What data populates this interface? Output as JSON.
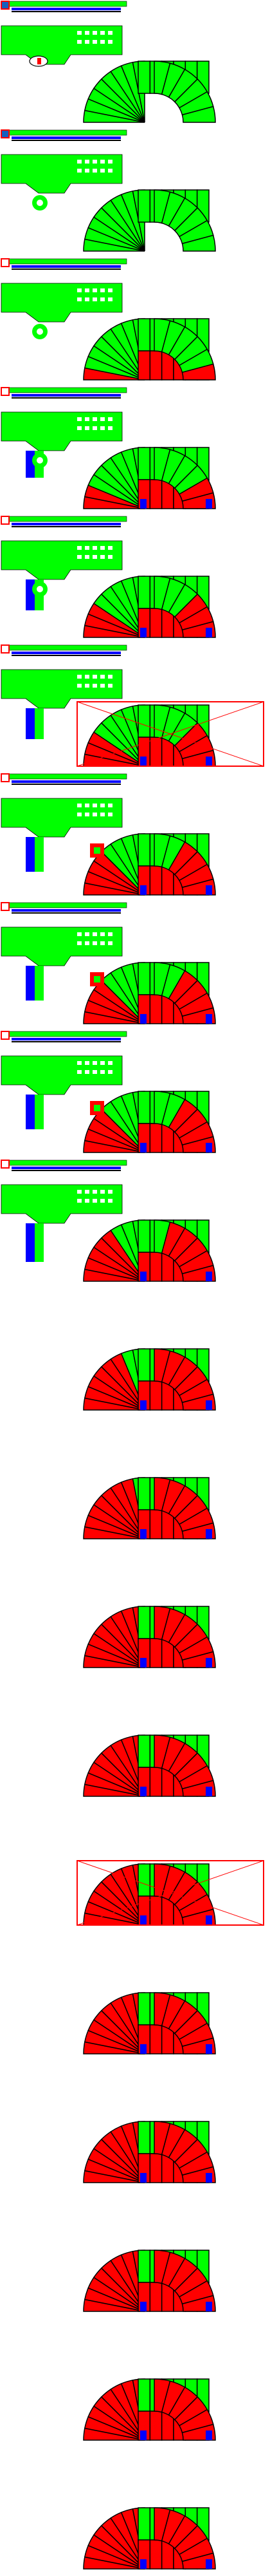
{
  "frames": [
    {
      "level": 0,
      "panel": "full",
      "chip": "oval",
      "trace": "top-bottom",
      "highlight": false
    },
    {
      "level": 0,
      "panel": "full",
      "chip": "gear",
      "trace": "top-bottom",
      "highlight": false
    },
    {
      "level": 1,
      "panel": "full",
      "chip": "gear",
      "trace": "top-bottom",
      "highlight": false
    },
    {
      "level": 2,
      "panel": "full",
      "chip": "gear",
      "trace": "top-bottom",
      "highlight": false
    },
    {
      "level": 3,
      "panel": "full",
      "chip": "gear",
      "trace": "top-bottom",
      "highlight": false
    },
    {
      "level": 3,
      "panel": "full",
      "chip": "none",
      "trace": "top-bottom",
      "highlight": true
    },
    {
      "level": 4,
      "panel": "full",
      "chip": "square",
      "trace": "top-bottom",
      "highlight": false
    },
    {
      "level": 4,
      "panel": "full",
      "chip": "square",
      "trace": "top-bottom",
      "highlight": false
    },
    {
      "level": 4,
      "panel": "full",
      "chip": "square",
      "trace": "top-bottom",
      "highlight": false
    },
    {
      "level": 5,
      "panel": "full",
      "chip": "none",
      "trace": "top-bottom",
      "highlight": false
    },
    {
      "level": 6,
      "panel": "none",
      "chip": "none",
      "trace": "none",
      "highlight": false
    },
    {
      "level": 7,
      "panel": "none",
      "chip": "none",
      "trace": "none",
      "highlight": false
    },
    {
      "level": 8,
      "panel": "none",
      "chip": "none",
      "trace": "none",
      "highlight": false
    },
    {
      "level": 9,
      "panel": "none",
      "chip": "none",
      "trace": "none",
      "highlight": false
    },
    {
      "level": 9,
      "panel": "none",
      "chip": "none",
      "trace": "none",
      "highlight": true
    },
    {
      "level": 10,
      "panel": "none",
      "chip": "none",
      "trace": "none",
      "highlight": false
    },
    {
      "level": 11,
      "panel": "none",
      "chip": "none",
      "trace": "none",
      "highlight": false
    },
    {
      "level": 12,
      "panel": "none",
      "chip": "none",
      "trace": "none",
      "highlight": false
    },
    {
      "level": 13,
      "panel": "none",
      "chip": "none",
      "trace": "none",
      "highlight": false
    },
    {
      "level": 14,
      "panel": "none",
      "chip": "none",
      "trace": "none",
      "highlight": false
    }
  ],
  "colors": {
    "fill_primary": "#00ff00",
    "fill_secondary": "#ff0000",
    "accent_blue": "#0000ff",
    "ink": "#000000",
    "panel_blue": "#1560bd",
    "paper": "#ffffff"
  }
}
